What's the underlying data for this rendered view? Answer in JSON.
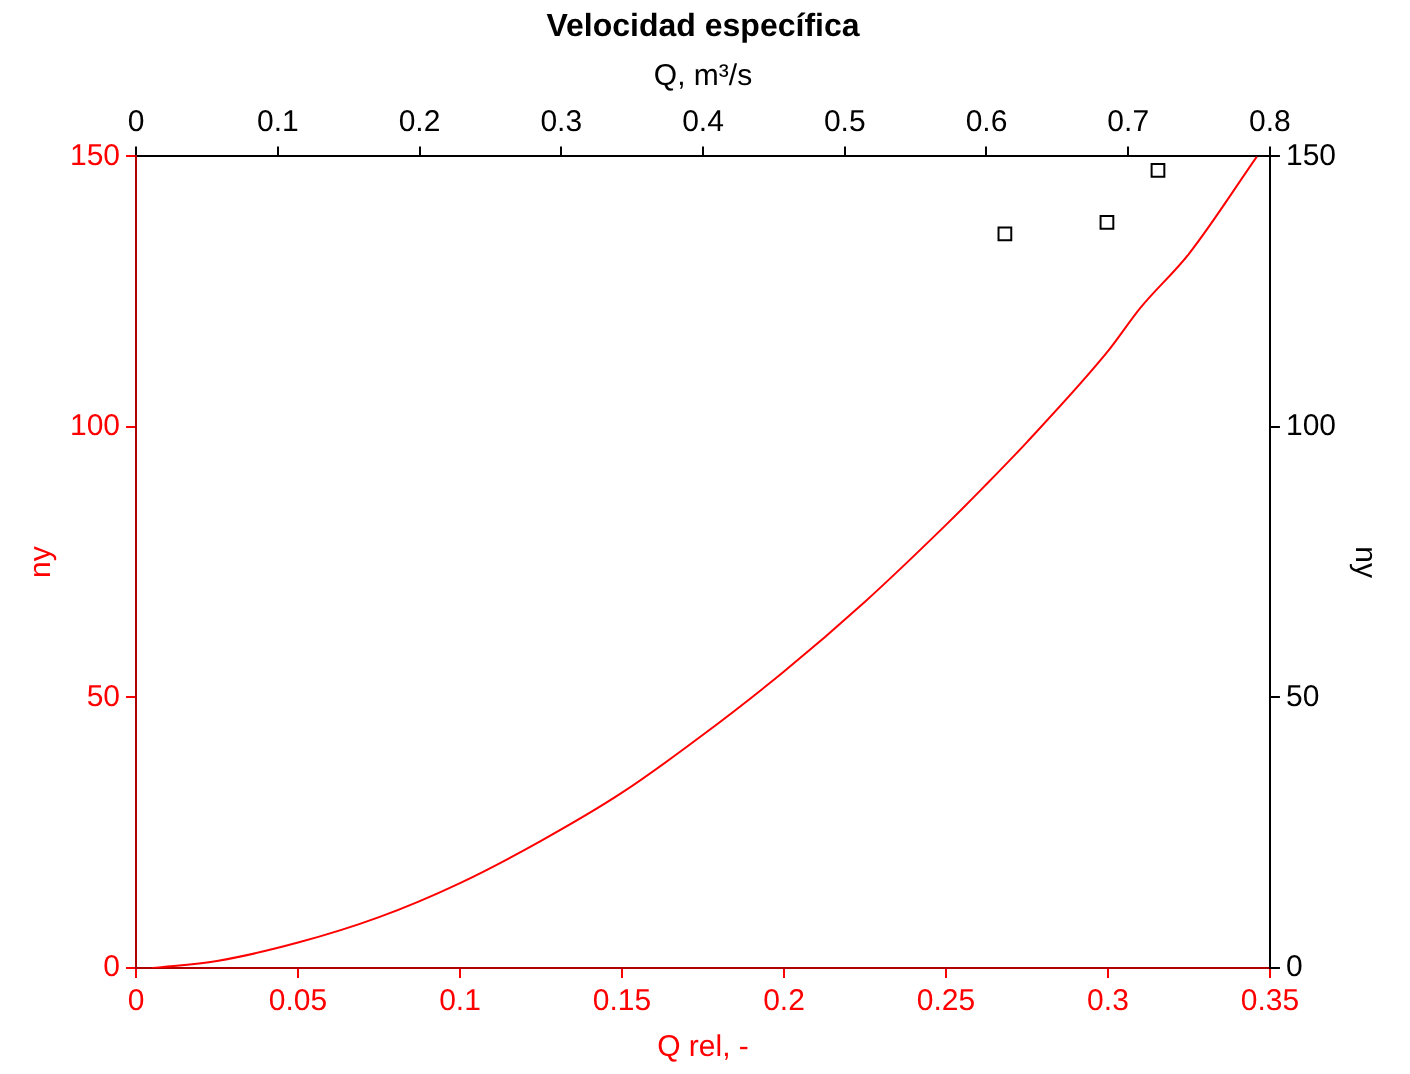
{
  "chart_data": {
    "type": "line",
    "title": "Velocidad específica",
    "xlabel": "Q rel, -",
    "x2label": "Q, m³/s",
    "ylabel": "ny",
    "y2label": "ny",
    "xlim": [
      0,
      0.35
    ],
    "xticks": [
      0,
      0.05,
      0.1,
      0.15,
      0.2,
      0.25,
      0.3,
      0.35
    ],
    "x2lim": [
      0,
      0.8
    ],
    "x2ticks": [
      0,
      0.1,
      0.2,
      0.3,
      0.4,
      0.5,
      0.6,
      0.7,
      0.8
    ],
    "ylim": [
      0,
      150
    ],
    "yticks": [
      0,
      50,
      100,
      150
    ],
    "y2lim": [
      0,
      150
    ],
    "y2ticks": [
      0,
      50,
      100,
      150
    ],
    "grid": false,
    "legend": false,
    "series": [
      {
        "color": "#ff0000",
        "marker": "none",
        "x": [
          0.005,
          0.025,
          0.05,
          0.075,
          0.1,
          0.125,
          0.15,
          0.175,
          0.2,
          0.225,
          0.25,
          0.262,
          0.275,
          0.3,
          0.31,
          0.325,
          0.346
        ],
        "values": [
          0,
          1.3,
          4.7,
          9.4,
          15.7,
          23.5,
          32.4,
          43.1,
          54.8,
          67.7,
          81.9,
          89.1,
          97.2,
          114,
          122,
          132,
          150
        ]
      },
      {
        "type": "scatter",
        "axis": "x2",
        "color": "#000000",
        "marker": "square",
        "x": [
          0.613,
          0.685,
          0.721
        ],
        "values": [
          135.7,
          137.8,
          147.4
        ]
      }
    ]
  }
}
